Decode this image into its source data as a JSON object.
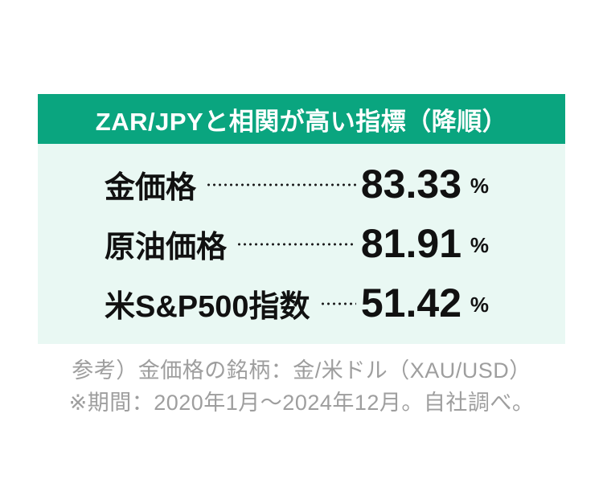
{
  "card": {
    "title": "ZAR/JPYと相関が高い指標（降順）",
    "rows": [
      {
        "label": "金価格",
        "value": "83.33",
        "unit": "%"
      },
      {
        "label": "原油価格",
        "value": "81.91",
        "unit": "%"
      },
      {
        "label": "米S&P500指数",
        "value": "51.42",
        "unit": "%"
      }
    ]
  },
  "footnotes": [
    "参考）金価格の銘柄：金/米ドル（XAU/USD）",
    "※期間：2020年1月〜2024年12月。自社調べ。"
  ],
  "colors": {
    "header_green": "#0aa57f",
    "body_mint": "#e9f8f3",
    "text_black": "#111111",
    "dot_leader": "#1c1c1c",
    "footnote_gray": "#9e9e9e",
    "header_text": "#ffffff"
  },
  "chart_data": {
    "type": "table",
    "title": "ZAR/JPYと相関が高い指標（降順）",
    "categories": [
      "金価格",
      "原油価格",
      "米S&P500指数"
    ],
    "values": [
      83.33,
      81.91,
      51.42
    ],
    "unit": "%",
    "order": "descending",
    "notes": [
      "参考）金価格の銘柄：金/米ドル（XAU/USD）",
      "※期間：2020年1月〜2024年12月。自社調べ。"
    ]
  }
}
